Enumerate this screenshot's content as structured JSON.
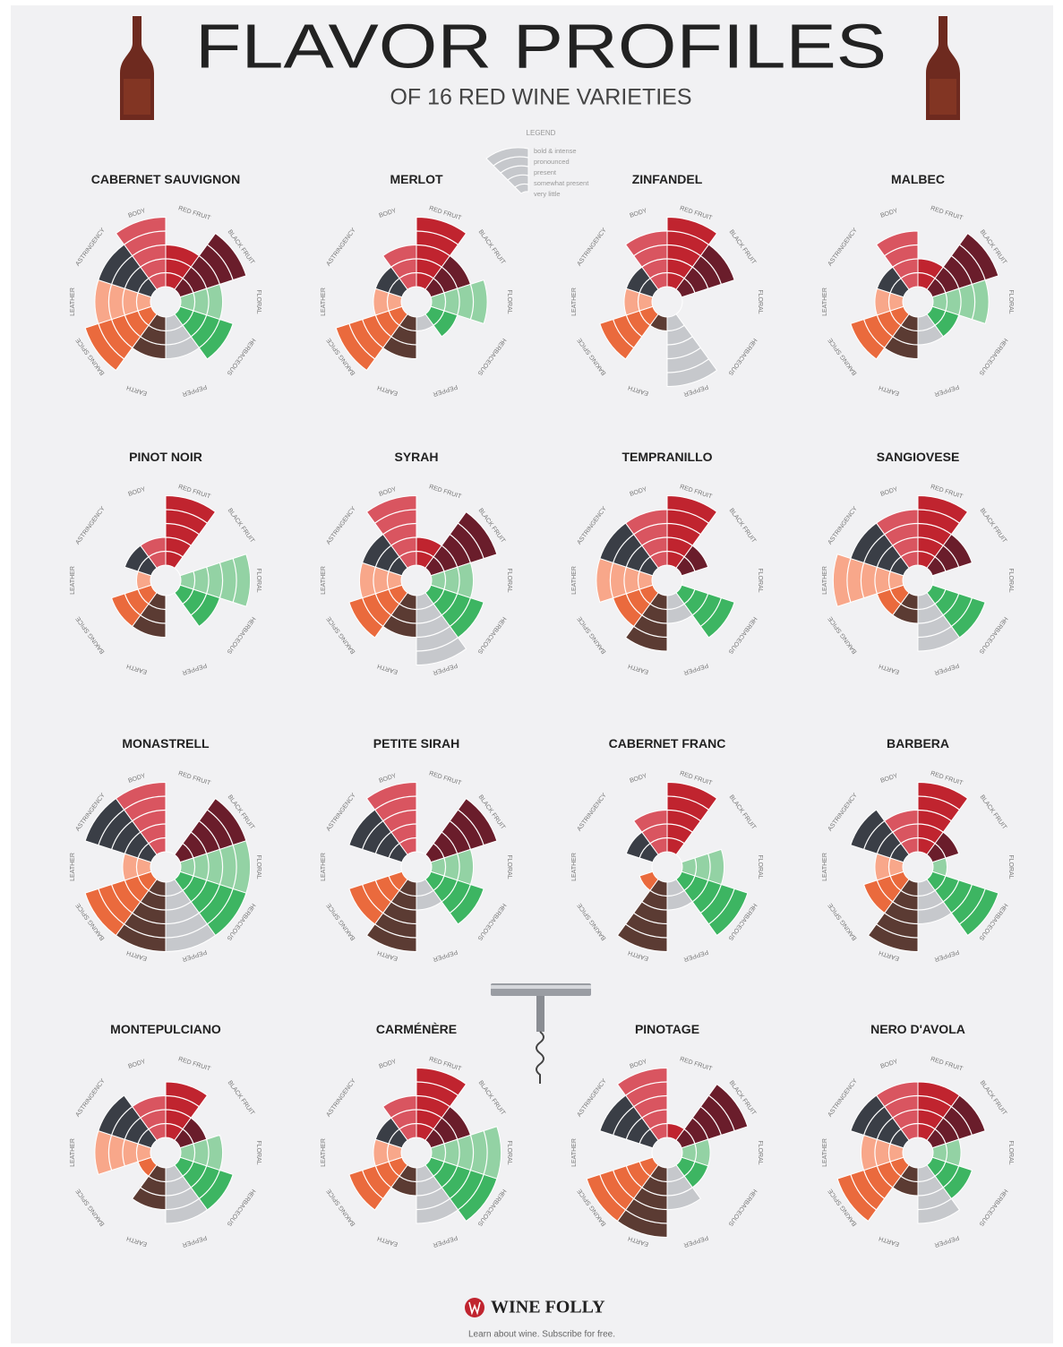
{
  "header": {
    "title": "FLAVOR PROFILES",
    "subtitle": "OF 16 RED WINE VARIETIES"
  },
  "legend": {
    "title": "LEGEND",
    "levels": [
      "bold & intense",
      "pronounced",
      "present",
      "somewhat present",
      "very little"
    ]
  },
  "footer": {
    "brand": "WINE FOLLY",
    "tagline": "Learn about wine. Subscribe for free."
  },
  "chart_data": [
    {
      "type": "polar-area",
      "title": "CABERNET SAUVIGNON",
      "categories": [
        "BODY",
        "RED FRUIT",
        "BLACK FRUIT",
        "FLORAL",
        "HERBACEOUS",
        "PEPPER",
        "EARTH",
        "BAKING SPICE",
        "LEATHER",
        "ASTRINGENCY"
      ],
      "values": [
        5,
        3,
        5,
        3,
        4,
        3,
        3,
        5,
        4,
        4
      ],
      "colors": [
        "#d95560",
        "#c0242f",
        "#6a1d2b",
        "#93d2a4",
        "#3db562",
        "#c6c8cc",
        "#5b3b33",
        "#ea6a3d",
        "#f8a78a",
        "#3a3e46"
      ],
      "rlim": [
        0,
        5
      ]
    },
    {
      "type": "polar-area",
      "title": "MERLOT",
      "categories": [
        "BODY",
        "RED FRUIT",
        "BLACK FRUIT",
        "FLORAL",
        "HERBACEOUS",
        "PEPPER",
        "EARTH",
        "BAKING SPICE",
        "LEATHER",
        "ASTRINGENCY"
      ],
      "values": [
        3,
        5,
        3,
        4,
        2,
        1,
        3,
        5,
        2,
        2
      ],
      "colors": [
        "#d95560",
        "#c0242f",
        "#6a1d2b",
        "#93d2a4",
        "#3db562",
        "#c6c8cc",
        "#5b3b33",
        "#ea6a3d",
        "#f8a78a",
        "#3a3e46"
      ],
      "rlim": [
        0,
        5
      ]
    },
    {
      "type": "polar-area",
      "title": "ZINFANDEL",
      "categories": [
        "BODY",
        "RED FRUIT",
        "BLACK FRUIT",
        "FLORAL",
        "HERBACEOUS",
        "PEPPER",
        "EARTH",
        "BAKING SPICE",
        "LEATHER",
        "ASTRINGENCY"
      ],
      "values": [
        4,
        5,
        4,
        0,
        0,
        5,
        1,
        4,
        2,
        2
      ],
      "colors": [
        "#d95560",
        "#c0242f",
        "#6a1d2b",
        "#93d2a4",
        "#3db562",
        "#c6c8cc",
        "#5b3b33",
        "#ea6a3d",
        "#f8a78a",
        "#3a3e46"
      ],
      "rlim": [
        0,
        5
      ]
    },
    {
      "type": "polar-area",
      "title": "MALBEC",
      "categories": [
        "BODY",
        "RED FRUIT",
        "BLACK FRUIT",
        "FLORAL",
        "HERBACEOUS",
        "PEPPER",
        "EARTH",
        "BAKING SPICE",
        "LEATHER",
        "ASTRINGENCY"
      ],
      "values": [
        4,
        2,
        5,
        4,
        2,
        2,
        3,
        4,
        2,
        2
      ],
      "colors": [
        "#d95560",
        "#c0242f",
        "#6a1d2b",
        "#93d2a4",
        "#3db562",
        "#c6c8cc",
        "#5b3b33",
        "#ea6a3d",
        "#f8a78a",
        "#3a3e46"
      ],
      "rlim": [
        0,
        5
      ]
    },
    {
      "type": "polar-area",
      "title": "PINOT NOIR",
      "categories": [
        "BODY",
        "RED FRUIT",
        "BLACK FRUIT",
        "FLORAL",
        "HERBACEOUS",
        "PEPPER",
        "EARTH",
        "BAKING SPICE",
        "LEATHER",
        "ASTRINGENCY"
      ],
      "values": [
        2,
        5,
        0,
        5,
        3,
        0,
        3,
        3,
        1,
        2
      ],
      "colors": [
        "#d95560",
        "#c0242f",
        "#6a1d2b",
        "#93d2a4",
        "#3db562",
        "#c6c8cc",
        "#5b3b33",
        "#ea6a3d",
        "#f8a78a",
        "#3a3e46"
      ],
      "rlim": [
        0,
        5
      ]
    },
    {
      "type": "polar-area",
      "title": "SYRAH",
      "categories": [
        "BODY",
        "RED FRUIT",
        "BLACK FRUIT",
        "FLORAL",
        "HERBACEOUS",
        "PEPPER",
        "EARTH",
        "BAKING SPICE",
        "LEATHER",
        "ASTRINGENCY"
      ],
      "values": [
        5,
        2,
        5,
        3,
        4,
        5,
        3,
        4,
        3,
        3
      ],
      "colors": [
        "#d95560",
        "#c0242f",
        "#6a1d2b",
        "#93d2a4",
        "#3db562",
        "#c6c8cc",
        "#5b3b33",
        "#ea6a3d",
        "#f8a78a",
        "#3a3e46"
      ],
      "rlim": [
        0,
        5
      ]
    },
    {
      "type": "polar-area",
      "title": "TEMPRANILLO",
      "categories": [
        "BODY",
        "RED FRUIT",
        "BLACK FRUIT",
        "FLORAL",
        "HERBACEOUS",
        "PEPPER",
        "EARTH",
        "BAKING SPICE",
        "LEATHER",
        "ASTRINGENCY"
      ],
      "values": [
        4,
        5,
        2,
        0,
        4,
        2,
        4,
        3,
        4,
        4
      ],
      "colors": [
        "#d95560",
        "#c0242f",
        "#6a1d2b",
        "#93d2a4",
        "#3db562",
        "#c6c8cc",
        "#5b3b33",
        "#ea6a3d",
        "#f8a78a",
        "#3a3e46"
      ],
      "rlim": [
        0,
        5
      ]
    },
    {
      "type": "polar-area",
      "title": "SANGIOVESE",
      "categories": [
        "BODY",
        "RED FRUIT",
        "BLACK FRUIT",
        "FLORAL",
        "HERBACEOUS",
        "PEPPER",
        "EARTH",
        "BAKING SPICE",
        "LEATHER",
        "ASTRINGENCY"
      ],
      "values": [
        4,
        5,
        3,
        0,
        4,
        4,
        2,
        2,
        5,
        4
      ],
      "colors": [
        "#d95560",
        "#c0242f",
        "#6a1d2b",
        "#93d2a4",
        "#3db562",
        "#c6c8cc",
        "#5b3b33",
        "#ea6a3d",
        "#f8a78a",
        "#3a3e46"
      ],
      "rlim": [
        0,
        5
      ]
    },
    {
      "type": "polar-area",
      "title": "MONASTRELL",
      "categories": [
        "BODY",
        "RED FRUIT",
        "BLACK FRUIT",
        "FLORAL",
        "HERBACEOUS",
        "PEPPER",
        "EARTH",
        "BAKING SPICE",
        "LEATHER",
        "ASTRINGENCY"
      ],
      "values": [
        5,
        0,
        5,
        5,
        5,
        5,
        5,
        5,
        2,
        5
      ],
      "colors": [
        "#d95560",
        "#c0242f",
        "#6a1d2b",
        "#93d2a4",
        "#3db562",
        "#c6c8cc",
        "#5b3b33",
        "#ea6a3d",
        "#f8a78a",
        "#3a3e46"
      ],
      "rlim": [
        0,
        5
      ]
    },
    {
      "type": "polar-area",
      "title": "PETITE SIRAH",
      "categories": [
        "BODY",
        "RED FRUIT",
        "BLACK FRUIT",
        "FLORAL",
        "HERBACEOUS",
        "PEPPER",
        "EARTH",
        "BAKING SPICE",
        "LEATHER",
        "ASTRINGENCY"
      ],
      "values": [
        5,
        0,
        5,
        3,
        4,
        2,
        5,
        4,
        0,
        4
      ],
      "colors": [
        "#d95560",
        "#c0242f",
        "#6a1d2b",
        "#93d2a4",
        "#3db562",
        "#c6c8cc",
        "#5b3b33",
        "#ea6a3d",
        "#f8a78a",
        "#3a3e46"
      ],
      "rlim": [
        0,
        5
      ]
    },
    {
      "type": "polar-area",
      "title": "CABERNET FRANC",
      "categories": [
        "BODY",
        "RED FRUIT",
        "BLACK FRUIT",
        "FLORAL",
        "HERBACEOUS",
        "PEPPER",
        "EARTH",
        "BAKING SPICE",
        "LEATHER",
        "ASTRINGENCY"
      ],
      "values": [
        3,
        5,
        0,
        3,
        5,
        2,
        5,
        1,
        0,
        2
      ],
      "colors": [
        "#d95560",
        "#c0242f",
        "#6a1d2b",
        "#93d2a4",
        "#3db562",
        "#c6c8cc",
        "#5b3b33",
        "#ea6a3d",
        "#f8a78a",
        "#3a3e46"
      ],
      "rlim": [
        0,
        5
      ]
    },
    {
      "type": "polar-area",
      "title": "BARBERA",
      "categories": [
        "BODY",
        "RED FRUIT",
        "BLACK FRUIT",
        "FLORAL",
        "HERBACEOUS",
        "PEPPER",
        "EARTH",
        "BAKING SPICE",
        "LEATHER",
        "ASTRINGENCY"
      ],
      "values": [
        3,
        5,
        2,
        1,
        5,
        3,
        5,
        3,
        2,
        4
      ],
      "colors": [
        "#d95560",
        "#c0242f",
        "#6a1d2b",
        "#93d2a4",
        "#3db562",
        "#c6c8cc",
        "#5b3b33",
        "#ea6a3d",
        "#f8a78a",
        "#3a3e46"
      ],
      "rlim": [
        0,
        5
      ]
    },
    {
      "type": "polar-area",
      "title": "MONTEPULCIANO",
      "categories": [
        "BODY",
        "RED FRUIT",
        "BLACK FRUIT",
        "FLORAL",
        "HERBACEOUS",
        "PEPPER",
        "EARTH",
        "BAKING SPICE",
        "LEATHER",
        "ASTRINGENCY"
      ],
      "values": [
        3,
        4,
        2,
        3,
        4,
        4,
        3,
        1,
        4,
        4
      ],
      "colors": [
        "#d95560",
        "#c0242f",
        "#6a1d2b",
        "#93d2a4",
        "#3db562",
        "#c6c8cc",
        "#5b3b33",
        "#ea6a3d",
        "#f8a78a",
        "#3a3e46"
      ],
      "rlim": [
        0,
        5
      ]
    },
    {
      "type": "polar-area",
      "title": "CARMÉNÈRE",
      "categories": [
        "BODY",
        "RED FRUIT",
        "BLACK FRUIT",
        "FLORAL",
        "HERBACEOUS",
        "PEPPER",
        "EARTH",
        "BAKING SPICE",
        "LEATHER",
        "ASTRINGENCY"
      ],
      "values": [
        3,
        5,
        3,
        5,
        5,
        4,
        2,
        4,
        2,
        2
      ],
      "colors": [
        "#d95560",
        "#c0242f",
        "#6a1d2b",
        "#93d2a4",
        "#3db562",
        "#c6c8cc",
        "#5b3b33",
        "#ea6a3d",
        "#f8a78a",
        "#3a3e46"
      ],
      "rlim": [
        0,
        5
      ]
    },
    {
      "type": "polar-area",
      "title": "PINOTAGE",
      "categories": [
        "BODY",
        "RED FRUIT",
        "BLACK FRUIT",
        "FLORAL",
        "HERBACEOUS",
        "PEPPER",
        "EARTH",
        "BAKING SPICE",
        "LEATHER",
        "ASTRINGENCY"
      ],
      "values": [
        5,
        1,
        5,
        2,
        2,
        3,
        5,
        5,
        0,
        4
      ],
      "colors": [
        "#d95560",
        "#c0242f",
        "#6a1d2b",
        "#93d2a4",
        "#3db562",
        "#c6c8cc",
        "#5b3b33",
        "#ea6a3d",
        "#f8a78a",
        "#3a3e46"
      ],
      "rlim": [
        0,
        5
      ]
    },
    {
      "type": "polar-area",
      "title": "NERO D'AVOLA",
      "categories": [
        "BODY",
        "RED FRUIT",
        "BLACK FRUIT",
        "FLORAL",
        "HERBACEOUS",
        "PEPPER",
        "EARTH",
        "BAKING SPICE",
        "LEATHER",
        "ASTRINGENCY"
      ],
      "values": [
        4,
        4,
        4,
        2,
        3,
        4,
        2,
        5,
        3,
        4
      ],
      "colors": [
        "#d95560",
        "#c0242f",
        "#6a1d2b",
        "#93d2a4",
        "#3db562",
        "#c6c8cc",
        "#5b3b33",
        "#ea6a3d",
        "#f8a78a",
        "#3a3e46"
      ],
      "rlim": [
        0,
        5
      ]
    }
  ]
}
